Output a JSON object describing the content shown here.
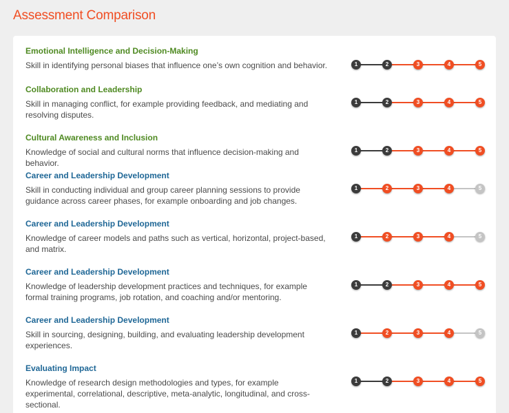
{
  "page": {
    "title": "Assessment Comparison"
  },
  "colors": {
    "title": "#f04e23",
    "category_green": "#4f8a22",
    "category_blue": "#1f6796",
    "dot_dark": "#3b3b3b",
    "dot_orange": "#f04e23",
    "dot_grey": "#c4c4c4"
  },
  "scale_labels": [
    "1",
    "2",
    "3",
    "4",
    "5"
  ],
  "items": [
    {
      "category": "Emotional Intelligence and Decision-Making",
      "category_color": "green",
      "description": "Skill in identifying personal biases that influence one’s own cognition and behavior.",
      "dark_through": 2,
      "orange_through": 5
    },
    {
      "category": "Collaboration and Leadership",
      "category_color": "green",
      "description": "Skill in managing conflict, for example providing feedback, and mediating and resolving disputes.",
      "dark_through": 2,
      "orange_through": 5
    },
    {
      "category": "Cultural Awareness and Inclusion",
      "category_color": "green",
      "description": "Knowledge of social and cultural norms that influence decision-making and behavior.",
      "dark_through": 2,
      "orange_through": 5
    },
    {
      "category": "Career and Leadership Development",
      "category_color": "blue",
      "description": "Skill in conducting individual and group career planning sessions to provide guidance across career phases, for example onboarding and job changes.",
      "dark_through": 1,
      "orange_through": 4
    },
    {
      "category": "Career and Leadership Development",
      "category_color": "blue",
      "description": "Knowledge of career models and paths such as vertical, horizontal, project-based, and matrix.",
      "dark_through": 1,
      "orange_through": 4
    },
    {
      "category": "Career and Leadership Development",
      "category_color": "blue",
      "description": "Knowledge of leadership development practices and techniques, for example formal training programs, job rotation, and coaching and/or mentoring.",
      "dark_through": 2,
      "orange_through": 5
    },
    {
      "category": "Career and Leadership Development",
      "category_color": "blue",
      "description": "Skill in sourcing, designing, building, and evaluating leadership development experiences.",
      "dark_through": 1,
      "orange_through": 4
    },
    {
      "category": "Evaluating Impact",
      "category_color": "blue",
      "description": "Knowledge of research design methodologies and types, for example experimental, correlational, descriptive, meta-analytic, longitudinal, and cross-sectional.",
      "dark_through": 2,
      "orange_through": 5
    }
  ]
}
